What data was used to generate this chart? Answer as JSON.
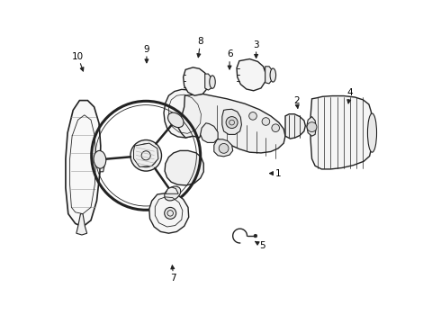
{
  "bg_color": "#ffffff",
  "line_color": "#222222",
  "lw": 1.0,
  "parts_labels": {
    "1": [
      0.678,
      0.535,
      0.648,
      0.535
    ],
    "2": [
      0.735,
      0.31,
      0.74,
      0.345
    ],
    "3": [
      0.61,
      0.138,
      0.61,
      0.19
    ],
    "4": [
      0.9,
      0.285,
      0.893,
      0.33
    ],
    "5": [
      0.628,
      0.758,
      0.598,
      0.74
    ],
    "6": [
      0.528,
      0.168,
      0.528,
      0.225
    ],
    "7": [
      0.355,
      0.858,
      0.35,
      0.808
    ],
    "8": [
      0.438,
      0.128,
      0.43,
      0.188
    ],
    "9": [
      0.272,
      0.152,
      0.272,
      0.205
    ],
    "10": [
      0.06,
      0.175,
      0.08,
      0.23
    ]
  }
}
